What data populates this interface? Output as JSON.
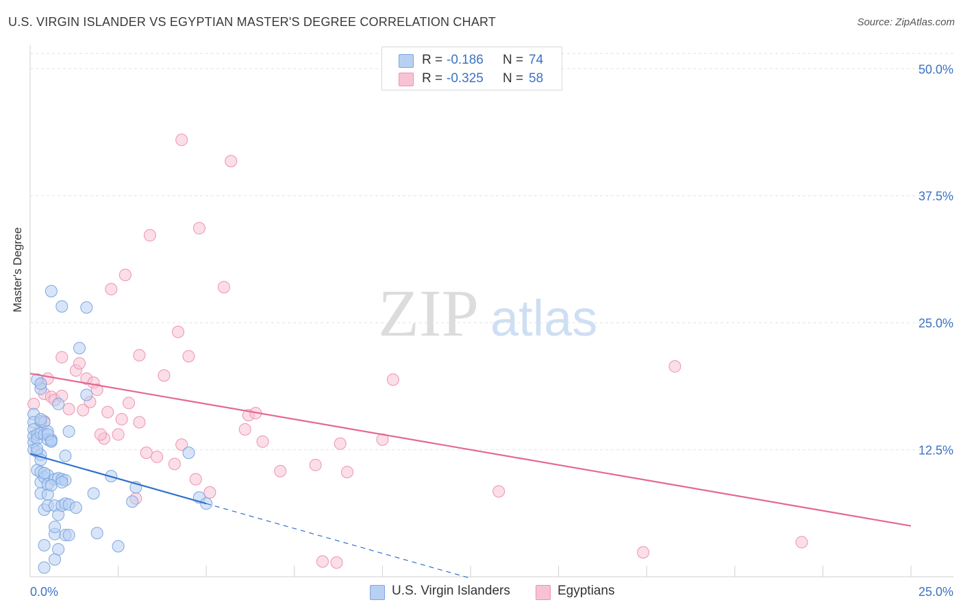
{
  "title": "U.S. VIRGIN ISLANDER VS EGYPTIAN MASTER'S DEGREE CORRELATION CHART",
  "source": "Source: ZipAtlas.com",
  "watermark": {
    "zip": "ZIP",
    "atlas": "atlas"
  },
  "legend": {
    "r_label": "R =",
    "n_label": "N =",
    "series": [
      {
        "name": "U.S. Virgin Islanders",
        "r": "-0.186",
        "n": "74"
      },
      {
        "name": "Egyptians",
        "r": "-0.325",
        "n": "58"
      }
    ]
  },
  "colors": {
    "blue_fill": "#b8d0f2",
    "blue_stroke": "#7aa6e0",
    "blue_line": "#2f6fcc",
    "pink_fill": "#f7c3d3",
    "pink_stroke": "#ec93b0",
    "pink_line": "#e4688f",
    "axis_text": "#3b72c4",
    "grid": "#e2e2e2"
  },
  "chart_data": {
    "type": "scatter",
    "title": "U.S. VIRGIN ISLANDER VS EGYPTIAN MASTER'S DEGREE CORRELATION CHART",
    "xlabel": "",
    "ylabel": "Master's Degree",
    "xlim": [
      0,
      25
    ],
    "ylim": [
      0,
      51.5
    ],
    "x_tick_labels": [
      "0.0%",
      "25.0%"
    ],
    "y_ticks": [
      12.5,
      25.0,
      37.5,
      50.0
    ],
    "y_tick_labels": [
      "12.5%",
      "25.0%",
      "37.5%",
      "50.0%"
    ],
    "grid": true,
    "series": [
      {
        "name": "U.S. Virgin Islanders",
        "r": -0.186,
        "n": 74,
        "trend": {
          "x0": 0.0,
          "y0": 12.1,
          "x1": 5.0,
          "y1": 7.2,
          "dash_to_x": 12.5
        },
        "points": [
          [
            0.1,
            16.0
          ],
          [
            0.1,
            15.2
          ],
          [
            0.1,
            14.5
          ],
          [
            0.1,
            13.8
          ],
          [
            0.1,
            13.2
          ],
          [
            0.1,
            12.5
          ],
          [
            0.2,
            14.0
          ],
          [
            0.2,
            12.3
          ],
          [
            0.2,
            10.5
          ],
          [
            0.2,
            13.6
          ],
          [
            0.3,
            15.3
          ],
          [
            0.3,
            14.1
          ],
          [
            0.3,
            12.0
          ],
          [
            0.3,
            11.5
          ],
          [
            0.3,
            9.3
          ],
          [
            0.3,
            8.2
          ],
          [
            0.3,
            10.3
          ],
          [
            0.3,
            18.5
          ],
          [
            0.4,
            14.0
          ],
          [
            0.4,
            15.2
          ],
          [
            0.4,
            9.8
          ],
          [
            0.4,
            6.6
          ],
          [
            0.4,
            3.1
          ],
          [
            0.4,
            0.9
          ],
          [
            0.5,
            14.3
          ],
          [
            0.5,
            13.5
          ],
          [
            0.5,
            10.0
          ],
          [
            0.5,
            8.1
          ],
          [
            0.5,
            7.0
          ],
          [
            0.5,
            9.1
          ],
          [
            0.6,
            28.1
          ],
          [
            0.6,
            13.4
          ],
          [
            0.6,
            13.5
          ],
          [
            0.7,
            4.2
          ],
          [
            0.7,
            1.7
          ],
          [
            0.7,
            9.6
          ],
          [
            0.7,
            4.9
          ],
          [
            0.7,
            7.0
          ],
          [
            0.8,
            17.0
          ],
          [
            0.8,
            2.7
          ],
          [
            0.8,
            6.1
          ],
          [
            0.8,
            9.7
          ],
          [
            0.9,
            26.6
          ],
          [
            0.9,
            7.0
          ],
          [
            0.9,
            9.6
          ],
          [
            1.0,
            9.5
          ],
          [
            1.0,
            4.1
          ],
          [
            1.0,
            7.2
          ],
          [
            1.0,
            11.9
          ],
          [
            1.1,
            14.3
          ],
          [
            1.1,
            4.1
          ],
          [
            1.1,
            7.1
          ],
          [
            1.3,
            6.8
          ],
          [
            1.4,
            22.5
          ],
          [
            1.6,
            26.5
          ],
          [
            1.6,
            17.9
          ],
          [
            1.8,
            8.2
          ],
          [
            1.9,
            4.3
          ],
          [
            2.3,
            9.9
          ],
          [
            2.5,
            3.0
          ],
          [
            2.9,
            7.4
          ],
          [
            3.0,
            8.8
          ],
          [
            4.5,
            12.2
          ],
          [
            4.8,
            7.8
          ],
          [
            5.0,
            7.2
          ],
          [
            0.2,
            19.4
          ],
          [
            0.3,
            19.0
          ],
          [
            0.2,
            12.6
          ],
          [
            0.4,
            10.2
          ],
          [
            0.6,
            9.0
          ],
          [
            0.5,
            14.0
          ],
          [
            0.3,
            15.5
          ],
          [
            0.6,
            13.3
          ],
          [
            0.9,
            9.3
          ]
        ]
      },
      {
        "name": "Egyptians",
        "r": -0.325,
        "n": 58,
        "trend": {
          "x0": 0.0,
          "y0": 20.0,
          "x1": 25.0,
          "y1": 5.0
        },
        "points": [
          [
            0.1,
            17.0
          ],
          [
            0.3,
            19.0
          ],
          [
            0.4,
            18.0
          ],
          [
            0.5,
            19.5
          ],
          [
            0.4,
            15.3
          ],
          [
            0.6,
            17.7
          ],
          [
            0.7,
            17.4
          ],
          [
            0.9,
            17.8
          ],
          [
            0.9,
            21.6
          ],
          [
            1.1,
            16.5
          ],
          [
            1.3,
            20.3
          ],
          [
            1.4,
            21.0
          ],
          [
            1.5,
            16.4
          ],
          [
            1.6,
            19.5
          ],
          [
            1.7,
            17.2
          ],
          [
            1.8,
            19.1
          ],
          [
            1.9,
            18.4
          ],
          [
            2.1,
            13.6
          ],
          [
            2.2,
            16.2
          ],
          [
            2.3,
            28.3
          ],
          [
            2.5,
            14.0
          ],
          [
            2.6,
            15.5
          ],
          [
            2.7,
            29.7
          ],
          [
            2.8,
            17.1
          ],
          [
            3.0,
            7.7
          ],
          [
            3.1,
            21.8
          ],
          [
            3.1,
            15.2
          ],
          [
            3.3,
            12.2
          ],
          [
            3.4,
            33.6
          ],
          [
            3.6,
            11.8
          ],
          [
            3.8,
            19.8
          ],
          [
            4.1,
            11.1
          ],
          [
            4.2,
            24.1
          ],
          [
            4.3,
            13.0
          ],
          [
            4.3,
            43.0
          ],
          [
            4.5,
            21.7
          ],
          [
            4.7,
            9.6
          ],
          [
            4.8,
            34.3
          ],
          [
            5.1,
            8.3
          ],
          [
            5.5,
            28.5
          ],
          [
            5.7,
            40.9
          ],
          [
            6.1,
            14.5
          ],
          [
            6.2,
            15.9
          ],
          [
            6.4,
            16.1
          ],
          [
            6.6,
            13.3
          ],
          [
            7.1,
            10.4
          ],
          [
            8.1,
            11.0
          ],
          [
            8.3,
            1.5
          ],
          [
            8.7,
            1.4
          ],
          [
            8.8,
            13.1
          ],
          [
            9.0,
            10.3
          ],
          [
            10.0,
            13.5
          ],
          [
            10.3,
            19.4
          ],
          [
            13.3,
            8.4
          ],
          [
            17.4,
            2.4
          ],
          [
            18.3,
            20.7
          ],
          [
            21.9,
            3.4
          ],
          [
            2.0,
            14.0
          ]
        ]
      }
    ]
  }
}
